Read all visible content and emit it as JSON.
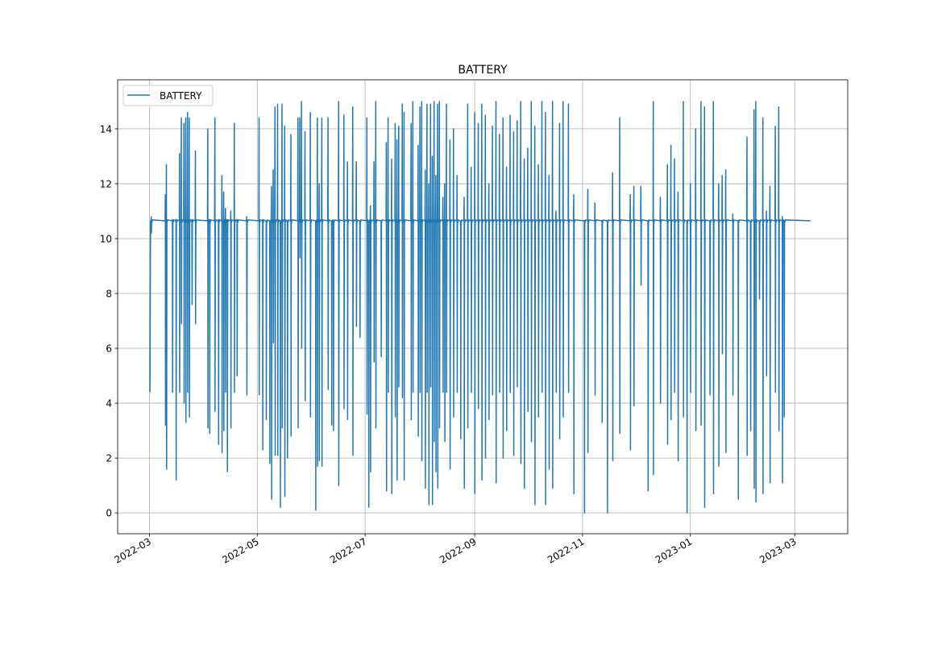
{
  "chart_data": {
    "type": "line",
    "title": "BATTERY",
    "xlabel": "",
    "ylabel": "",
    "legend": {
      "position": "top-left",
      "entries": [
        "BATTERY"
      ]
    },
    "grid": true,
    "series_color": "#1f77b4",
    "start_date": "2022-03-01",
    "x_unit": "days since start_date",
    "xlim_days": [
      -18,
      395
    ],
    "ylim": [
      -0.76,
      15.79
    ],
    "yticks": [
      0,
      2,
      4,
      6,
      8,
      10,
      12,
      14
    ],
    "xticks": [
      {
        "label": "2022-03",
        "day": 0
      },
      {
        "label": "2022-05",
        "day": 61
      },
      {
        "label": "2022-07",
        "day": 122
      },
      {
        "label": "2022-09",
        "day": 184
      },
      {
        "label": "2022-11",
        "day": 245
      },
      {
        "label": "2023-01",
        "day": 306
      },
      {
        "label": "2023-03",
        "day": 365
      }
    ],
    "baseline": 10.65,
    "first_point": {
      "day": 0.3,
      "value": 4.4
    },
    "last_day": 374,
    "spikes_note": "each spike: [day, high, low]",
    "spikes": [
      [
        1,
        10.8,
        10.2
      ],
      [
        9,
        11.6,
        3.2
      ],
      [
        9.6,
        12.7,
        1.6
      ],
      [
        13,
        10.7,
        4.4
      ],
      [
        15,
        10.7,
        1.2
      ],
      [
        17,
        13.1,
        4.4
      ],
      [
        18,
        14.4,
        6.9
      ],
      [
        19.5,
        14.2,
        4.0
      ],
      [
        20.5,
        14.4,
        3.3
      ],
      [
        21.5,
        14.6,
        4.4
      ],
      [
        22.5,
        14.4,
        3.5
      ],
      [
        24,
        10.7,
        7.6
      ],
      [
        26,
        13.2,
        6.9
      ],
      [
        33,
        14.0,
        3.1
      ],
      [
        34,
        10.7,
        2.9
      ],
      [
        37,
        14.4,
        3.7
      ],
      [
        39,
        10.7,
        2.5
      ],
      [
        41,
        12.3,
        2.2
      ],
      [
        42,
        11.7,
        3.0
      ],
      [
        43,
        11.1,
        4.4
      ],
      [
        44,
        10.7,
        1.5
      ],
      [
        46,
        11.0,
        3.1
      ],
      [
        48,
        14.2,
        4.4
      ],
      [
        49.5,
        10.7,
        5.0
      ],
      [
        55,
        10.8,
        4.3
      ],
      [
        62,
        14.4,
        4.3
      ],
      [
        64,
        10.7,
        2.3
      ],
      [
        66,
        10.6,
        3.4
      ],
      [
        68,
        10.6,
        1.8
      ],
      [
        69,
        11.9,
        0.5
      ],
      [
        70,
        12.5,
        6.2
      ],
      [
        71,
        14.8,
        2.1
      ],
      [
        72.5,
        14.9,
        2.1
      ],
      [
        74,
        10.6,
        0.2
      ],
      [
        75,
        14.9,
        3.1
      ],
      [
        76.5,
        14.1,
        0.6
      ],
      [
        78,
        10.6,
        2.0
      ],
      [
        80,
        13.8,
        2.8
      ],
      [
        84,
        14.4,
        3.1
      ],
      [
        85,
        14.4,
        9.3
      ],
      [
        86,
        15.0,
        6.0
      ],
      [
        88,
        13.9,
        4.1
      ],
      [
        91,
        14.6,
        3.5
      ],
      [
        94,
        10.6,
        0.1
      ],
      [
        95,
        14.4,
        1.7
      ],
      [
        96,
        12.0,
        1.9
      ],
      [
        97.5,
        14.4,
        1.7
      ],
      [
        101,
        14.4,
        4.5
      ],
      [
        103,
        10.6,
        3.2
      ],
      [
        104,
        10.6,
        3.0
      ],
      [
        107,
        15.0,
        1.0
      ],
      [
        110,
        14.5,
        3.8
      ],
      [
        112,
        12.8,
        3.4
      ],
      [
        115,
        14.8,
        2.1
      ],
      [
        117,
        12.8,
        6.8
      ],
      [
        119,
        10.6,
        6.4
      ],
      [
        123,
        14.4,
        3.6
      ],
      [
        124,
        10.6,
        0.2
      ],
      [
        125,
        11.2,
        1.5
      ],
      [
        127,
        12.8,
        5.5
      ],
      [
        128,
        15.0,
        3.1
      ],
      [
        131,
        10.6,
        5.7
      ],
      [
        134,
        13.5,
        0.8
      ],
      [
        135,
        14.4,
        4.4
      ],
      [
        137,
        12.9,
        0.7
      ],
      [
        139,
        14.2,
        3.5
      ],
      [
        140,
        13.6,
        1.2
      ],
      [
        141,
        14.1,
        4.6
      ],
      [
        143,
        14.9,
        4.2
      ],
      [
        144,
        14.6,
        1.2
      ],
      [
        148,
        14.2,
        3.4
      ],
      [
        149,
        15.0,
        4.4
      ],
      [
        152,
        13.4,
        2.8
      ],
      [
        153,
        14.8,
        4.4
      ],
      [
        154,
        15.0,
        1.9
      ],
      [
        156,
        12.5,
        0.9
      ],
      [
        157,
        14.9,
        4.4
      ],
      [
        158,
        12.0,
        0.3
      ],
      [
        159,
        14.9,
        4.6
      ],
      [
        160,
        13.0,
        0.3
      ],
      [
        161,
        15.0,
        2.6
      ],
      [
        162,
        12.3,
        1.5
      ],
      [
        163,
        14.9,
        0.9
      ],
      [
        164,
        15.0,
        3.1
      ],
      [
        166,
        11.5,
        4.4
      ],
      [
        167,
        12.0,
        2.6
      ],
      [
        168,
        14.9,
        4.4
      ],
      [
        170,
        13.6,
        1.6
      ],
      [
        172,
        14.0,
        3.5
      ],
      [
        174,
        12.3,
        4.4
      ],
      [
        176,
        10.6,
        2.7
      ],
      [
        178,
        11.5,
        0.9
      ],
      [
        180,
        14.9,
        3.1
      ],
      [
        182,
        12.6,
        4.4
      ],
      [
        184,
        14.6,
        0.7
      ],
      [
        186,
        14.2,
        3.8
      ],
      [
        188,
        14.9,
        1.2
      ],
      [
        190,
        14.5,
        2.0
      ],
      [
        192,
        12.0,
        3.4
      ],
      [
        194,
        14.1,
        4.3
      ],
      [
        196,
        15.0,
        1.1
      ],
      [
        198,
        13.8,
        4.4
      ],
      [
        200,
        14.4,
        2.0
      ],
      [
        202,
        12.6,
        3.0
      ],
      [
        204,
        14.5,
        4.4
      ],
      [
        206,
        13.9,
        2.1
      ],
      [
        208,
        14.3,
        4.6
      ],
      [
        210,
        15.0,
        1.8
      ],
      [
        212,
        12.9,
        0.9
      ],
      [
        214,
        13.3,
        3.7
      ],
      [
        216,
        15.0,
        2.6
      ],
      [
        218,
        14.1,
        0.3
      ],
      [
        220,
        12.7,
        3.5
      ],
      [
        222,
        15.0,
        4.4
      ],
      [
        224,
        14.6,
        0.3
      ],
      [
        226,
        12.3,
        1.6
      ],
      [
        228,
        15.0,
        0.9
      ],
      [
        230,
        11.0,
        4.4
      ],
      [
        232,
        14.2,
        2.7
      ],
      [
        234,
        15.0,
        3.5
      ],
      [
        237,
        14.9,
        4.4
      ],
      [
        240,
        11.6,
        0.7
      ],
      [
        246,
        10.6,
        0.0
      ],
      [
        248,
        11.8,
        2.2
      ],
      [
        252,
        11.3,
        4.3
      ],
      [
        256,
        10.6,
        3.3
      ],
      [
        259,
        10.6,
        0.0
      ],
      [
        262,
        12.4,
        1.9
      ],
      [
        266,
        14.4,
        2.9
      ],
      [
        272,
        11.6,
        2.3
      ],
      [
        274,
        11.9,
        3.9
      ],
      [
        278,
        11.9,
        8.3
      ],
      [
        282,
        10.6,
        0.8
      ],
      [
        285,
        15.0,
        1.4
      ],
      [
        289,
        11.5,
        4.0
      ],
      [
        293,
        12.7,
        2.5
      ],
      [
        295,
        13.4,
        3.4
      ],
      [
        297,
        12.9,
        4.4
      ],
      [
        299,
        11.7,
        1.9
      ],
      [
        302,
        15.0,
        3.5
      ],
      [
        304,
        10.6,
        0.0
      ],
      [
        306,
        12.0,
        4.4
      ],
      [
        309,
        14.0,
        3.0
      ],
      [
        312,
        15.0,
        3.2
      ],
      [
        314,
        14.8,
        0.2
      ],
      [
        317,
        10.6,
        4.3
      ],
      [
        319,
        15.0,
        0.7
      ],
      [
        322,
        12.0,
        1.7
      ],
      [
        324,
        12.3,
        5.8
      ],
      [
        326,
        12.5,
        2.2
      ],
      [
        330,
        10.9,
        4.3
      ],
      [
        333,
        10.6,
        0.5
      ],
      [
        338,
        13.7,
        2.1
      ],
      [
        340,
        10.6,
        3.0
      ],
      [
        342,
        14.7,
        0.9
      ],
      [
        343,
        15.0,
        0.4
      ],
      [
        345,
        10.6,
        7.8
      ],
      [
        347,
        14.4,
        0.7
      ],
      [
        349,
        11.0,
        5.0
      ],
      [
        351,
        11.9,
        1.1
      ],
      [
        354,
        14.1,
        4.4
      ],
      [
        356,
        14.8,
        3.0
      ],
      [
        358,
        10.8,
        1.1
      ],
      [
        359,
        10.6,
        3.5
      ]
    ]
  }
}
